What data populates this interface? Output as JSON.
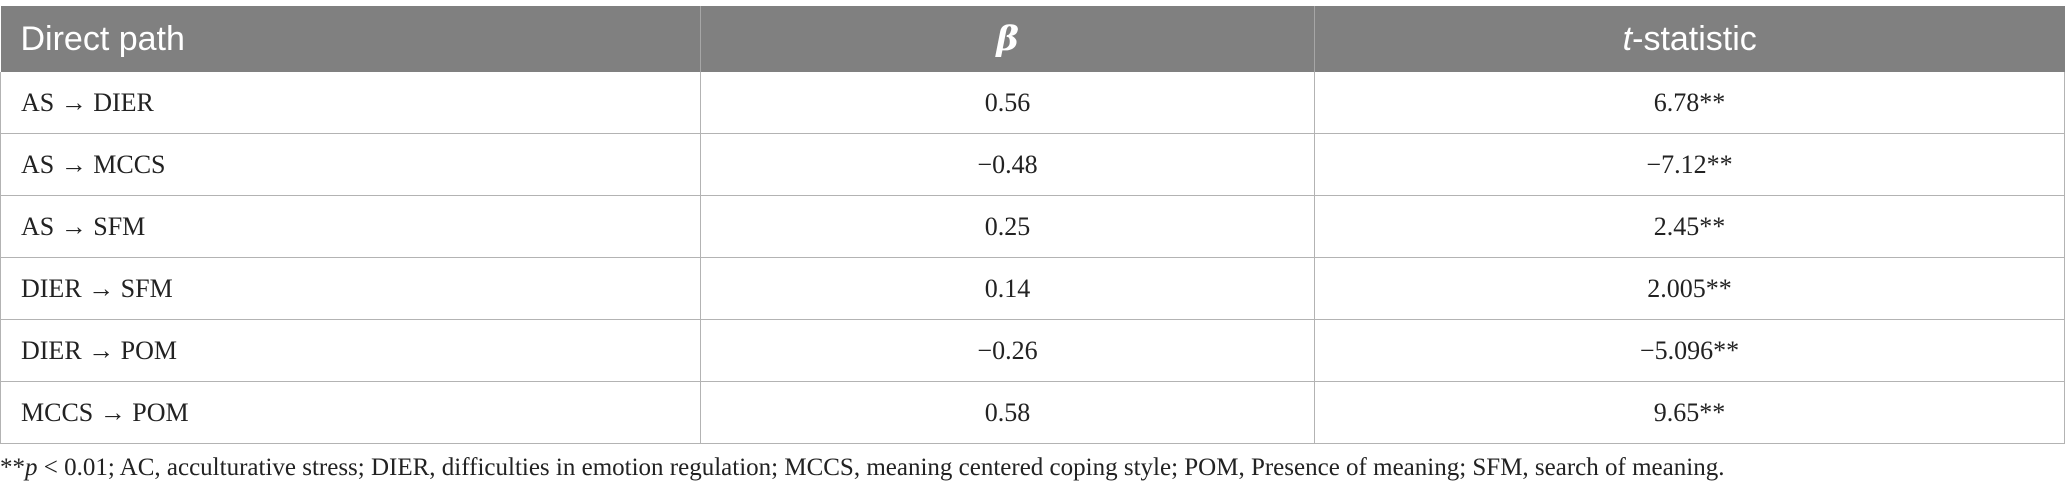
{
  "table": {
    "headers": {
      "direct_path": "Direct path",
      "beta": "β",
      "t_statistic_italic": "t",
      "t_statistic_rest": "-statistic"
    },
    "rows": [
      {
        "path": "AS → DIER",
        "beta": "0.56",
        "t": "6.78**"
      },
      {
        "path": "AS → MCCS",
        "beta": "−0.48",
        "t": "−7.12**"
      },
      {
        "path": "AS → SFM",
        "beta": "0.25",
        "t": "2.45**"
      },
      {
        "path": "DIER → SFM",
        "beta": "0.14",
        "t": "2.005**"
      },
      {
        "path": "DIER → POM",
        "beta": "−0.26",
        "t": "−5.096**"
      },
      {
        "path": "MCCS → POM",
        "beta": "0.58",
        "t": "9.65**"
      }
    ]
  },
  "footnote": {
    "stars": "**",
    "p": "p",
    "rest": " < 0.01; AC, acculturative stress; DIER, difficulties in emotion regulation; MCCS, meaning centered coping style; POM, Presence of meaning; SFM, search of meaning."
  }
}
